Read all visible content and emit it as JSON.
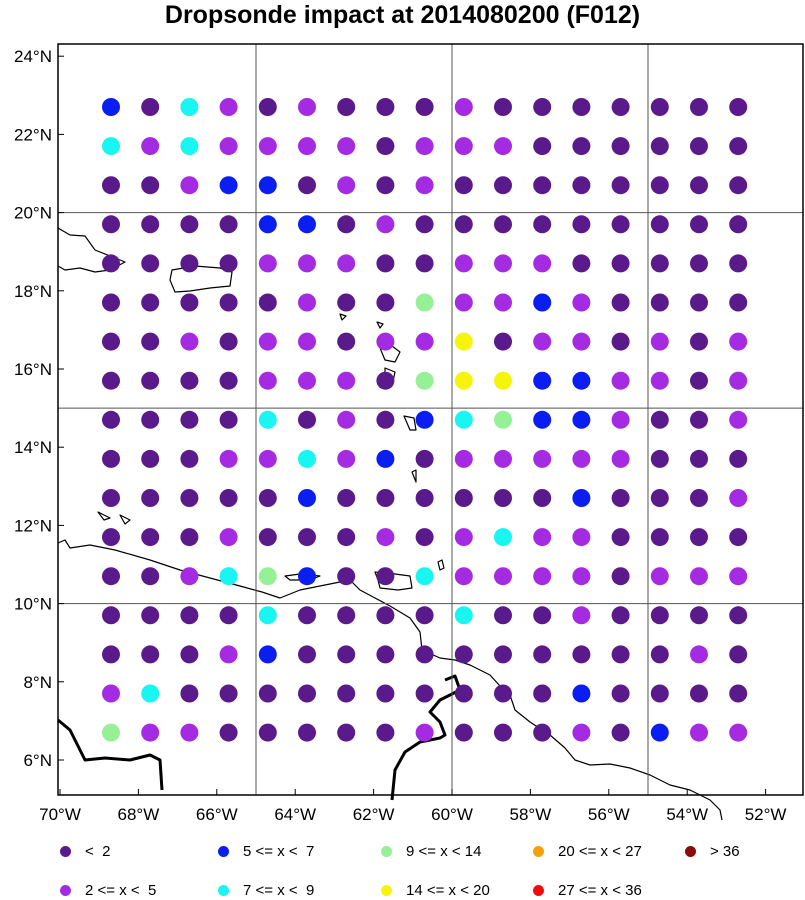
{
  "title": "Dropsonde impact at 2014080200 (F012)",
  "colors": {
    "c0": "#5b1a8c",
    "c1": "#a52be2",
    "c2": "#0b1ef2",
    "c3": "#19f5f0",
    "c4": "#96f096",
    "c5": "#f7f40c",
    "c6": "#f5a00a",
    "c7": "#f00c0c",
    "c8": "#8b0a0a"
  },
  "legend": [
    {
      "label": "<  2",
      "color_key": "c0"
    },
    {
      "label": "5 <= x <  7",
      "color_key": "c2"
    },
    {
      "label": "9 <= x < 14",
      "color_key": "c4"
    },
    {
      "label": "20 <= x < 27",
      "color_key": "c6"
    },
    {
      "label": "> 36",
      "color_key": "c8"
    },
    {
      "label": "2 <= x <  5",
      "color_key": "c1"
    },
    {
      "label": "7 <= x <  9",
      "color_key": "c3"
    },
    {
      "label": "14 <= x < 20",
      "color_key": "c5"
    },
    {
      "label": "27 <= x < 36",
      "color_key": "c7"
    }
  ],
  "chart_data": {
    "type": "map_scatter",
    "title": "Dropsonde impact at 2014080200 (F012)",
    "x_range_deg": [
      -70,
      -52
    ],
    "y_range_deg": [
      5.2,
      24.3
    ],
    "x_ticks": [
      "70°W",
      "68°W",
      "66°W",
      "64°W",
      "62°W",
      "60°W",
      "58°W",
      "56°W",
      "54°W",
      "52°W"
    ],
    "y_ticks": [
      "6°N",
      "8°N",
      "10°N",
      "12°N",
      "14°N",
      "16°N",
      "18°N",
      "20°N",
      "22°N",
      "24°N"
    ],
    "grid_lines_lon": [
      -65,
      -60,
      -55
    ],
    "grid_lines_lat": [
      10,
      15,
      20
    ],
    "point_lons": [
      -68.7,
      -67.7,
      -66.7,
      -65.7,
      -64.7,
      -63.7,
      -62.7,
      -61.7,
      -60.7,
      -59.7,
      -58.7,
      -57.7,
      -56.7,
      -55.7,
      -54.7,
      -53.7,
      -52.7
    ],
    "point_lats": [
      22.7,
      21.7,
      20.7,
      19.7,
      18.7,
      17.7,
      16.7,
      15.7,
      14.7,
      13.7,
      12.7,
      11.7,
      10.7,
      9.7,
      8.7,
      7.7,
      6.7
    ],
    "category_bins": [
      "< 2",
      "2 <= x < 5",
      "5 <= x < 7",
      "7 <= x < 9",
      "9 <= x < 14",
      "14 <= x < 20",
      "20 <= x < 27",
      "27 <= x < 36",
      "> 36"
    ],
    "category_rows": [
      [
        2,
        0,
        3,
        1,
        0,
        1,
        0,
        0,
        0,
        1,
        0,
        0,
        0,
        0,
        0,
        0,
        0
      ],
      [
        3,
        1,
        3,
        1,
        1,
        1,
        1,
        0,
        1,
        1,
        1,
        0,
        0,
        0,
        0,
        0,
        0
      ],
      [
        0,
        0,
        1,
        2,
        2,
        0,
        1,
        0,
        1,
        0,
        0,
        0,
        0,
        0,
        0,
        0,
        0
      ],
      [
        0,
        0,
        0,
        0,
        2,
        2,
        0,
        1,
        0,
        0,
        0,
        0,
        0,
        0,
        0,
        0,
        0
      ],
      [
        0,
        0,
        0,
        0,
        1,
        1,
        1,
        0,
        0,
        1,
        1,
        1,
        0,
        0,
        0,
        0,
        0
      ],
      [
        0,
        0,
        0,
        0,
        0,
        1,
        0,
        0,
        4,
        1,
        1,
        2,
        1,
        0,
        0,
        0,
        0
      ],
      [
        0,
        0,
        1,
        0,
        1,
        1,
        0,
        1,
        1,
        5,
        0,
        1,
        1,
        0,
        1,
        0,
        1
      ],
      [
        0,
        0,
        0,
        0,
        1,
        1,
        1,
        0,
        4,
        5,
        5,
        2,
        2,
        1,
        1,
        0,
        1
      ],
      [
        0,
        0,
        0,
        0,
        3,
        0,
        1,
        0,
        2,
        3,
        4,
        2,
        2,
        1,
        0,
        0,
        1
      ],
      [
        0,
        0,
        0,
        1,
        1,
        3,
        1,
        2,
        0,
        1,
        1,
        1,
        1,
        1,
        0,
        0,
        0
      ],
      [
        0,
        0,
        0,
        0,
        0,
        2,
        0,
        0,
        0,
        0,
        0,
        0,
        2,
        0,
        0,
        0,
        1
      ],
      [
        0,
        0,
        0,
        1,
        0,
        0,
        0,
        1,
        0,
        1,
        3,
        1,
        1,
        0,
        0,
        0,
        0
      ],
      [
        0,
        0,
        1,
        3,
        4,
        2,
        0,
        0,
        3,
        1,
        1,
        1,
        1,
        0,
        1,
        1,
        1
      ],
      [
        0,
        0,
        0,
        0,
        3,
        0,
        0,
        0,
        0,
        3,
        0,
        0,
        1,
        0,
        0,
        0,
        0
      ],
      [
        0,
        0,
        0,
        1,
        2,
        0,
        0,
        0,
        0,
        0,
        0,
        0,
        0,
        0,
        0,
        1,
        0
      ],
      [
        1,
        3,
        0,
        0,
        0,
        0,
        0,
        0,
        0,
        0,
        0,
        0,
        2,
        0,
        0,
        0,
        0
      ],
      [
        4,
        1,
        1,
        0,
        0,
        0,
        0,
        0,
        1,
        0,
        0,
        0,
        1,
        0,
        2,
        1,
        1
      ]
    ]
  }
}
